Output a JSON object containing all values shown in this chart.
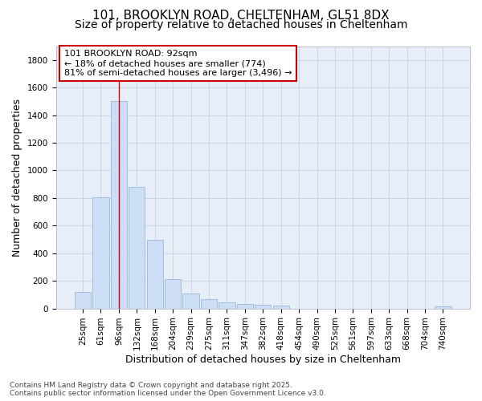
{
  "title_line1": "101, BROOKLYN ROAD, CHELTENHAM, GL51 8DX",
  "title_line2": "Size of property relative to detached houses in Cheltenham",
  "xlabel": "Distribution of detached houses by size in Cheltenham",
  "ylabel": "Number of detached properties",
  "categories": [
    "25sqm",
    "61sqm",
    "96sqm",
    "132sqm",
    "168sqm",
    "204sqm",
    "239sqm",
    "275sqm",
    "311sqm",
    "347sqm",
    "382sqm",
    "418sqm",
    "454sqm",
    "490sqm",
    "525sqm",
    "561sqm",
    "597sqm",
    "633sqm",
    "668sqm",
    "704sqm",
    "740sqm"
  ],
  "values": [
    120,
    805,
    1500,
    880,
    500,
    210,
    110,
    65,
    45,
    35,
    28,
    20,
    0,
    0,
    0,
    0,
    0,
    0,
    0,
    0,
    15
  ],
  "bar_color": "#ccddf5",
  "bar_edge_color": "#a0bede",
  "vline_x": 2,
  "vline_color": "#cc0000",
  "annotation_text": "101 BROOKLYN ROAD: 92sqm\n← 18% of detached houses are smaller (774)\n81% of semi-detached houses are larger (3,496) →",
  "annotation_box_color": "white",
  "annotation_box_edge": "#cc0000",
  "ylim": [
    0,
    1900
  ],
  "yticks": [
    0,
    200,
    400,
    600,
    800,
    1000,
    1200,
    1400,
    1600,
    1800
  ],
  "footer_text": "Contains HM Land Registry data © Crown copyright and database right 2025.\nContains public sector information licensed under the Open Government Licence v3.0.",
  "bg_color": "#ffffff",
  "plot_bg_color": "#e8eef8",
  "grid_color": "#c8d4e8",
  "title1_fontsize": 11,
  "title2_fontsize": 10,
  "axis_label_fontsize": 9,
  "tick_fontsize": 7.5,
  "annotation_fontsize": 8,
  "footer_fontsize": 6.5
}
